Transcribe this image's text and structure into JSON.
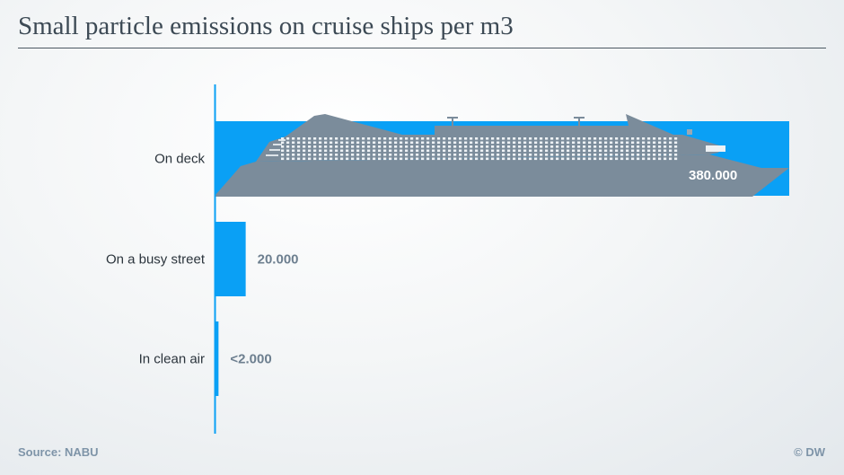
{
  "title": "Small particle emissions on cruise ships per m3",
  "source": "Source: NABU",
  "credit": "© DW",
  "colors": {
    "bar": "#0aa0f5",
    "ship": "#7b8c9b",
    "text": "#2b343c",
    "value": "#6d7f8f"
  },
  "chart_data": {
    "type": "bar",
    "orientation": "horizontal",
    "categories": [
      "On deck",
      "On a busy street",
      "In clean air"
    ],
    "values": [
      380000,
      20000,
      2000
    ],
    "value_labels": [
      "380.000",
      "20.000",
      "<2.000"
    ],
    "xlim": [
      0,
      380000
    ],
    "grid": false,
    "legend": "none",
    "illustration": "cruise ship silhouette overlaid on the top bar"
  }
}
